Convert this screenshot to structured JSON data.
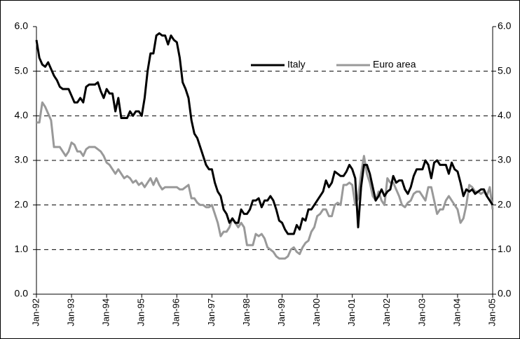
{
  "chart_data": {
    "type": "line",
    "categories": [
      "Jan-92",
      null,
      null,
      null,
      null,
      null,
      null,
      null,
      null,
      null,
      null,
      null,
      "Jan-93",
      null,
      null,
      null,
      null,
      null,
      null,
      null,
      null,
      null,
      null,
      null,
      "Jan-94",
      null,
      null,
      null,
      null,
      null,
      null,
      null,
      null,
      null,
      null,
      null,
      "Jan-95",
      null,
      null,
      null,
      null,
      null,
      null,
      null,
      null,
      null,
      null,
      null,
      "Jan-96",
      null,
      null,
      null,
      null,
      null,
      null,
      null,
      null,
      null,
      null,
      null,
      "Jan-97",
      null,
      null,
      null,
      null,
      null,
      null,
      null,
      null,
      null,
      null,
      null,
      "Jan-98",
      null,
      null,
      null,
      null,
      null,
      null,
      null,
      null,
      null,
      null,
      null,
      "Jan-99",
      null,
      null,
      null,
      null,
      null,
      null,
      null,
      null,
      null,
      null,
      null,
      "Jan-00",
      null,
      null,
      null,
      null,
      null,
      null,
      null,
      null,
      null,
      null,
      null,
      "Jan-01",
      null,
      null,
      null,
      null,
      null,
      null,
      null,
      null,
      null,
      null,
      null,
      "Jan-02",
      null,
      null,
      null,
      null,
      null,
      null,
      null,
      null,
      null,
      null,
      null,
      "Jan-03",
      null,
      null,
      null,
      null,
      null,
      null,
      null,
      null,
      null,
      null,
      null,
      "Jan-04",
      null,
      null,
      null,
      null,
      null,
      null,
      null,
      null,
      null,
      null,
      null,
      "Jan-05"
    ],
    "series": [
      {
        "name": "Italy",
        "color": "#000000",
        "values": [
          5.7,
          5.3,
          5.15,
          5.1,
          5.2,
          5.05,
          4.9,
          4.8,
          4.65,
          4.6,
          4.6,
          4.6,
          4.45,
          4.3,
          4.3,
          4.4,
          4.3,
          4.65,
          4.7,
          4.7,
          4.7,
          4.75,
          4.55,
          4.4,
          4.6,
          4.5,
          4.5,
          4.1,
          4.4,
          3.95,
          3.95,
          3.95,
          4.1,
          4.0,
          4.1,
          4.1,
          4.0,
          4.4,
          5.0,
          5.4,
          5.4,
          5.8,
          5.85,
          5.8,
          5.8,
          5.6,
          5.8,
          5.7,
          5.65,
          5.3,
          4.75,
          4.6,
          4.4,
          3.9,
          3.6,
          3.5,
          3.3,
          3.1,
          2.9,
          2.8,
          2.8,
          2.5,
          2.3,
          2.2,
          1.9,
          1.8,
          1.6,
          1.7,
          1.6,
          1.6,
          1.9,
          1.8,
          1.8,
          1.9,
          2.1,
          2.1,
          2.15,
          1.95,
          2.1,
          2.1,
          2.2,
          2.1,
          1.9,
          1.65,
          1.6,
          1.45,
          1.35,
          1.35,
          1.35,
          1.55,
          1.45,
          1.7,
          1.65,
          1.9,
          1.9,
          2.0,
          2.1,
          2.2,
          2.3,
          2.55,
          2.4,
          2.5,
          2.75,
          2.7,
          2.65,
          2.65,
          2.75,
          2.9,
          2.8,
          2.6,
          1.5,
          2.4,
          2.9,
          2.9,
          2.7,
          2.4,
          2.1,
          2.2,
          2.35,
          2.2,
          2.3,
          2.35,
          2.65,
          2.5,
          2.55,
          2.55,
          2.35,
          2.25,
          2.4,
          2.65,
          2.8,
          2.8,
          2.8,
          3.0,
          2.9,
          2.6,
          2.95,
          3.0,
          2.9,
          2.9,
          2.9,
          2.7,
          2.95,
          2.8,
          2.75,
          2.5,
          2.2,
          2.35,
          2.3,
          2.35,
          2.25,
          2.3,
          2.35,
          2.35,
          2.2,
          2.1,
          2.0
        ]
      },
      {
        "name": "Euro area",
        "color": "#999999",
        "values": [
          3.85,
          3.85,
          4.3,
          4.2,
          4.05,
          3.9,
          3.3,
          3.3,
          3.3,
          3.2,
          3.1,
          3.2,
          3.4,
          3.35,
          3.2,
          3.2,
          3.1,
          3.25,
          3.3,
          3.3,
          3.3,
          3.25,
          3.2,
          3.1,
          2.95,
          2.9,
          2.8,
          2.7,
          2.8,
          2.7,
          2.6,
          2.65,
          2.6,
          2.5,
          2.55,
          2.45,
          2.5,
          2.4,
          2.5,
          2.6,
          2.45,
          2.6,
          2.45,
          2.35,
          2.4,
          2.4,
          2.4,
          2.4,
          2.4,
          2.35,
          2.35,
          2.4,
          2.45,
          2.15,
          2.15,
          2.05,
          2.0,
          2.0,
          1.95,
          1.95,
          2.0,
          1.8,
          1.6,
          1.3,
          1.4,
          1.4,
          1.5,
          1.7,
          1.6,
          1.5,
          1.6,
          1.5,
          1.1,
          1.1,
          1.1,
          1.35,
          1.3,
          1.35,
          1.25,
          1.05,
          1.0,
          0.95,
          0.85,
          0.8,
          0.8,
          0.8,
          0.85,
          1.0,
          1.05,
          0.95,
          0.9,
          1.05,
          1.15,
          1.2,
          1.4,
          1.5,
          1.75,
          1.8,
          1.9,
          1.9,
          1.75,
          1.75,
          2.0,
          2.05,
          2.0,
          2.45,
          2.45,
          2.5,
          2.45,
          2.0,
          2.15,
          2.7,
          3.1,
          2.7,
          2.5,
          2.2,
          2.1,
          2.3,
          2.1,
          2.0,
          2.6,
          2.5,
          2.5,
          2.35,
          2.2,
          2.0,
          1.95,
          2.05,
          2.1,
          2.25,
          2.3,
          2.3,
          2.2,
          2.1,
          2.4,
          2.4,
          2.1,
          1.8,
          1.9,
          1.9,
          2.1,
          2.2,
          2.1,
          2.0,
          1.9,
          1.6,
          1.7,
          2.0,
          2.45,
          2.4,
          2.3,
          2.3,
          2.25,
          2.3,
          2.2,
          2.4,
          1.9
        ]
      }
    ],
    "ylim": [
      0,
      6
    ],
    "yticks": [
      {
        "value": 0,
        "label": "0.0"
      },
      {
        "value": 1,
        "label": "1.0"
      },
      {
        "value": 2,
        "label": "2.0"
      },
      {
        "value": 3,
        "label": "3.0"
      },
      {
        "value": 4,
        "label": "4.0"
      },
      {
        "value": 5,
        "label": "5.0"
      },
      {
        "value": 6,
        "label": "6.0"
      }
    ],
    "y2lim": [
      0,
      6
    ],
    "y2ticks": [
      {
        "value": 0,
        "label": "0.0"
      },
      {
        "value": 1,
        "label": "1.0"
      },
      {
        "value": 2,
        "label": "2.0"
      },
      {
        "value": 3,
        "label": "3.0"
      },
      {
        "value": 4,
        "label": "4.0"
      },
      {
        "value": 5,
        "label": "5.0"
      },
      {
        "value": 6,
        "label": "6.0"
      }
    ],
    "grid": true,
    "legend": "top"
  }
}
